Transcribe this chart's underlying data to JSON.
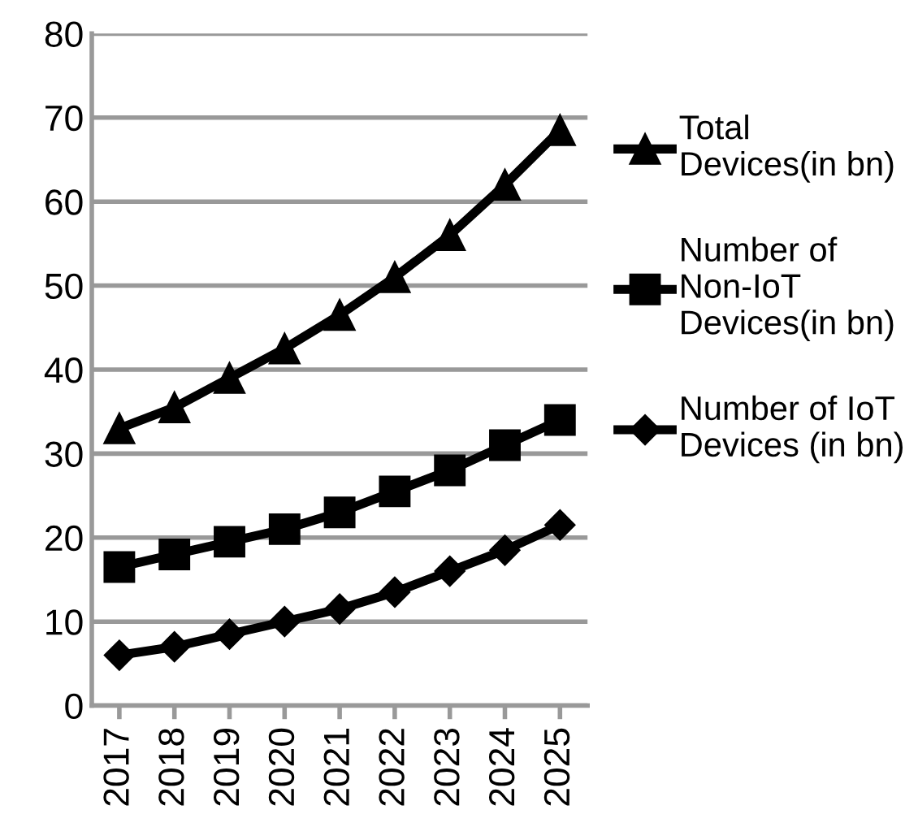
{
  "chart_data": {
    "type": "line",
    "categories": [
      "2017",
      "2018",
      "2019",
      "2020",
      "2021",
      "2022",
      "2023",
      "2024",
      "2025"
    ],
    "series": [
      {
        "name": "Total\nDevices(in bn)",
        "color": "#000000",
        "marker": "triangle",
        "values": [
          33,
          35.5,
          39,
          42.5,
          46.5,
          51,
          56,
          62,
          68.5
        ]
      },
      {
        "name": "Number of\nNon-IoT\nDevices(in bn)",
        "color": "#000000",
        "marker": "square",
        "values": [
          16.5,
          18,
          19.5,
          21,
          23,
          25.5,
          28,
          31,
          34
        ]
      },
      {
        "name": "Number of IoT\nDevices (in bn)",
        "color": "#000000",
        "marker": "diamond",
        "values": [
          6,
          7,
          8.5,
          10,
          11.5,
          13.5,
          16,
          18.5,
          21.5
        ]
      }
    ],
    "ylim": [
      0,
      80
    ],
    "yticks": [
      0,
      10,
      20,
      30,
      40,
      50,
      60,
      70,
      80
    ],
    "grid": "y",
    "legend": "right",
    "line_style": "solid"
  }
}
